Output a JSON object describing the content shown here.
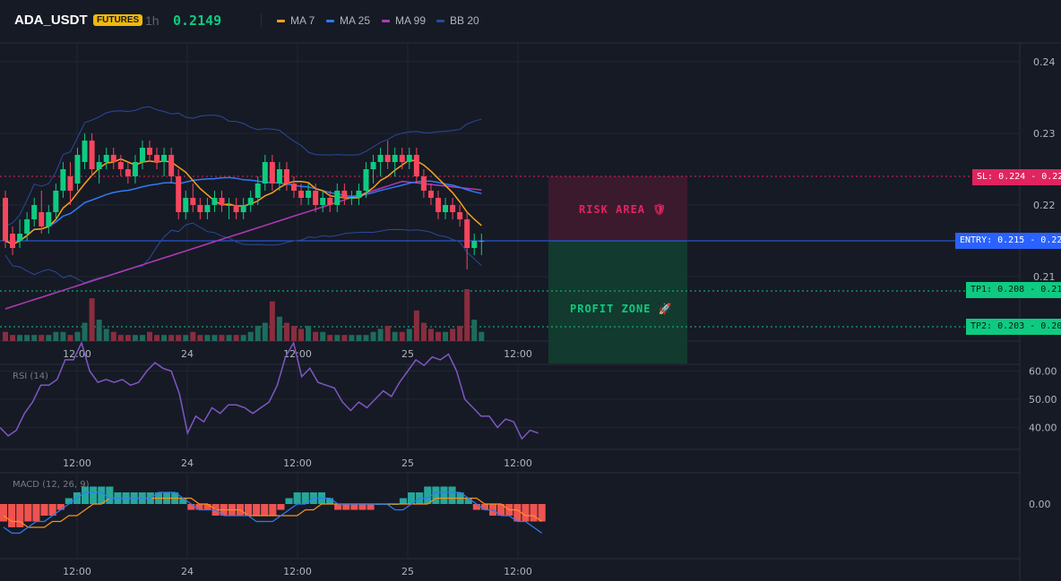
{
  "header": {
    "symbol": "ADA_USDT",
    "badge": "FUTURES",
    "timeframe": "1h",
    "price": "0.2149",
    "legend": [
      {
        "label": "MA 7",
        "color": "#f7a21b"
      },
      {
        "label": "MA 25",
        "color": "#2f7bf5"
      },
      {
        "label": "MA 99",
        "color": "#b03ab8"
      },
      {
        "label": "BB 20",
        "color": "#2a4a9a"
      }
    ]
  },
  "colors": {
    "up": "#0ecb81",
    "down": "#f6465d",
    "bg": "#161a25",
    "grid": "#222632",
    "rsi": "#7e57c2",
    "macd": "#2f7bf5",
    "signal": "#f7931a",
    "hist_up": "#26a69a",
    "hist_down": "#ef5350"
  },
  "x_labels": [
    "12:00",
    "24",
    "12:00",
    "25",
    "12:00"
  ],
  "price_axis": {
    "ticks": [
      "0.24",
      "0.23",
      "0.22",
      "0.21"
    ]
  },
  "rsi_axis": {
    "ticks": [
      "60.00",
      "50.00",
      "40.00"
    ]
  },
  "macd_axis": {
    "ticks": [
      "0.00"
    ]
  },
  "levels": {
    "sl": {
      "value": 0.224,
      "label": "SL: 0.224 - 0.22"
    },
    "entry": {
      "value": 0.215,
      "label": "ENTRY: 0.215 - 0.22"
    },
    "tp1": {
      "value": 0.208,
      "label": "TP1: 0.208 - 0.21"
    },
    "tp2": {
      "value": 0.203,
      "label": "TP2: 0.203 - 0.20"
    }
  },
  "zones": {
    "risk": "RISK AREA 🛡",
    "profit": "PROFIT ZONE 🚀"
  },
  "rsi_title": "RSI (14)",
  "macd_title": "MACD (12, 26, 9)",
  "chart_data": {
    "type": "candlestick",
    "x_tick_labels": [
      "12:00",
      "24",
      "12:00",
      "25",
      "12:00"
    ],
    "ylim": [
      0.201,
      0.242
    ],
    "candles": [
      [
        0.221,
        0.222,
        0.214,
        0.215
      ],
      [
        0.216,
        0.217,
        0.213,
        0.214
      ],
      [
        0.215,
        0.218,
        0.214,
        0.216
      ],
      [
        0.216,
        0.219,
        0.215,
        0.218
      ],
      [
        0.218,
        0.221,
        0.217,
        0.22
      ],
      [
        0.219,
        0.222,
        0.216,
        0.217
      ],
      [
        0.217,
        0.22,
        0.216,
        0.219
      ],
      [
        0.219,
        0.223,
        0.218,
        0.222
      ],
      [
        0.222,
        0.226,
        0.221,
        0.225
      ],
      [
        0.224,
        0.226,
        0.22,
        0.222
      ],
      [
        0.223,
        0.228,
        0.222,
        0.227
      ],
      [
        0.226,
        0.23,
        0.225,
        0.229
      ],
      [
        0.229,
        0.23,
        0.224,
        0.225
      ],
      [
        0.225,
        0.227,
        0.223,
        0.226
      ],
      [
        0.226,
        0.228,
        0.225,
        0.227
      ],
      [
        0.227,
        0.228,
        0.225,
        0.226
      ],
      [
        0.226,
        0.227,
        0.224,
        0.225
      ],
      [
        0.225,
        0.226,
        0.223,
        0.224
      ],
      [
        0.224,
        0.227,
        0.223,
        0.226
      ],
      [
        0.226,
        0.229,
        0.225,
        0.228
      ],
      [
        0.228,
        0.229,
        0.226,
        0.227
      ],
      [
        0.227,
        0.228,
        0.225,
        0.226
      ],
      [
        0.226,
        0.228,
        0.224,
        0.227
      ],
      [
        0.227,
        0.228,
        0.223,
        0.224
      ],
      [
        0.224,
        0.225,
        0.218,
        0.219
      ],
      [
        0.219,
        0.222,
        0.218,
        0.221
      ],
      [
        0.221,
        0.223,
        0.219,
        0.22
      ],
      [
        0.22,
        0.221,
        0.218,
        0.219
      ],
      [
        0.219,
        0.221,
        0.218,
        0.22
      ],
      [
        0.22,
        0.222,
        0.219,
        0.221
      ],
      [
        0.221,
        0.222,
        0.219,
        0.22
      ],
      [
        0.22,
        0.221,
        0.218,
        0.22
      ],
      [
        0.22,
        0.221,
        0.218,
        0.219
      ],
      [
        0.219,
        0.221,
        0.218,
        0.22
      ],
      [
        0.22,
        0.222,
        0.219,
        0.221
      ],
      [
        0.221,
        0.224,
        0.22,
        0.223
      ],
      [
        0.223,
        0.227,
        0.222,
        0.226
      ],
      [
        0.226,
        0.227,
        0.222,
        0.223
      ],
      [
        0.223,
        0.226,
        0.222,
        0.225
      ],
      [
        0.225,
        0.226,
        0.222,
        0.223
      ],
      [
        0.223,
        0.224,
        0.221,
        0.222
      ],
      [
        0.222,
        0.223,
        0.22,
        0.221
      ],
      [
        0.221,
        0.223,
        0.22,
        0.222
      ],
      [
        0.222,
        0.223,
        0.219,
        0.22
      ],
      [
        0.22,
        0.222,
        0.219,
        0.221
      ],
      [
        0.221,
        0.222,
        0.219,
        0.22
      ],
      [
        0.22,
        0.223,
        0.219,
        0.222
      ],
      [
        0.222,
        0.223,
        0.22,
        0.221
      ],
      [
        0.221,
        0.222,
        0.22,
        0.221
      ],
      [
        0.221,
        0.223,
        0.22,
        0.222
      ],
      [
        0.222,
        0.226,
        0.221,
        0.225
      ],
      [
        0.225,
        0.227,
        0.223,
        0.226
      ],
      [
        0.226,
        0.228,
        0.224,
        0.227
      ],
      [
        0.227,
        0.229,
        0.225,
        0.226
      ],
      [
        0.226,
        0.228,
        0.224,
        0.227
      ],
      [
        0.227,
        0.228,
        0.225,
        0.226
      ],
      [
        0.226,
        0.228,
        0.225,
        0.227
      ],
      [
        0.227,
        0.228,
        0.223,
        0.224
      ],
      [
        0.224,
        0.225,
        0.221,
        0.222
      ],
      [
        0.222,
        0.223,
        0.22,
        0.221
      ],
      [
        0.221,
        0.222,
        0.218,
        0.219
      ],
      [
        0.219,
        0.221,
        0.218,
        0.22
      ],
      [
        0.22,
        0.221,
        0.218,
        0.219
      ],
      [
        0.219,
        0.22,
        0.217,
        0.218
      ],
      [
        0.218,
        0.219,
        0.211,
        0.214
      ],
      [
        0.214,
        0.216,
        0.213,
        0.215
      ],
      [
        0.215,
        0.216,
        0.213,
        0.215
      ]
    ],
    "volume": [
      3,
      2,
      2,
      2,
      2,
      2,
      2,
      3,
      3,
      2,
      3,
      6,
      14,
      7,
      4,
      3,
      2,
      2,
      2,
      2,
      3,
      2,
      2,
      2,
      2,
      2,
      3,
      2,
      2,
      2,
      2,
      2,
      2,
      2,
      3,
      5,
      6,
      13,
      8,
      6,
      5,
      4,
      5,
      3,
      3,
      2,
      2,
      2,
      2,
      2,
      2,
      3,
      4,
      5,
      3,
      3,
      4,
      10,
      6,
      4,
      3,
      3,
      4,
      5,
      17,
      7,
      3
    ],
    "rsi": [
      40,
      37,
      39,
      45,
      49,
      55,
      55,
      57,
      64,
      64,
      70,
      60,
      56,
      57,
      56,
      57,
      55,
      56,
      60,
      63,
      61,
      60,
      52,
      38,
      44,
      42,
      47,
      45,
      48,
      48,
      47,
      45,
      47,
      49,
      55,
      65,
      70,
      58,
      61,
      56,
      55,
      54,
      49,
      46,
      49,
      47,
      50,
      53,
      51,
      56,
      60,
      64,
      62,
      65,
      64,
      66,
      60,
      50,
      47,
      44,
      44,
      40,
      43,
      42,
      36,
      39,
      38
    ],
    "macd": [
      -0.004,
      -0.005,
      -0.005,
      -0.004,
      -0.003,
      -0.003,
      -0.002,
      -0.001,
      0.0,
      0.001,
      0.002,
      0.002,
      0.002,
      0.001,
      0.001,
      0.001,
      0.001,
      0.001,
      0.001,
      0.002,
      0.002,
      0.002,
      0.001,
      0.0,
      -0.001,
      -0.001,
      -0.001,
      -0.002,
      -0.002,
      -0.002,
      -0.002,
      -0.003,
      -0.003,
      -0.003,
      -0.002,
      -0.001,
      0.0,
      0.0,
      0.001,
      0.001,
      0.001,
      0.0,
      0.0,
      0.0,
      0.0,
      0.0,
      0.0,
      -0.0,
      -0.001,
      -0.001,
      0.0,
      0.001,
      0.001,
      0.002,
      0.002,
      0.002,
      0.002,
      0.001,
      0.0,
      -0.001,
      -0.001,
      -0.002,
      -0.002,
      -0.003,
      -0.003,
      -0.004,
      -0.005
    ],
    "signal": [
      -0.002,
      -0.003,
      -0.003,
      -0.004,
      -0.004,
      -0.004,
      -0.003,
      -0.003,
      -0.002,
      -0.002,
      -0.001,
      -0.0,
      0.0,
      0.001,
      0.001,
      0.001,
      0.001,
      0.001,
      0.001,
      0.001,
      0.001,
      0.001,
      0.001,
      0.001,
      0.0,
      -0.0,
      -0.001,
      -0.001,
      -0.001,
      -0.001,
      -0.002,
      -0.002,
      -0.002,
      -0.002,
      -0.002,
      -0.002,
      -0.002,
      -0.001,
      -0.001,
      -0.0,
      0.0,
      0.0,
      0.0,
      0.0,
      0.0,
      0.0,
      0.0,
      0.0,
      -0.0,
      -0.0,
      -0.0,
      0.0,
      0.0,
      0.001,
      0.001,
      0.001,
      0.001,
      0.001,
      0.001,
      0.0,
      -0.0,
      -0.0,
      -0.001,
      -0.001,
      -0.002,
      -0.002,
      -0.003
    ],
    "hist": [
      -0.003,
      -0.004,
      -0.004,
      -0.003,
      -0.003,
      -0.002,
      -0.002,
      -0.001,
      0.001,
      0.002,
      0.003,
      0.003,
      0.003,
      0.003,
      0.002,
      0.002,
      0.002,
      0.002,
      0.002,
      0.002,
      0.002,
      0.002,
      0.001,
      -0.001,
      -0.001,
      -0.001,
      -0.002,
      -0.002,
      -0.002,
      -0.002,
      -0.002,
      -0.002,
      -0.002,
      -0.002,
      -0.001,
      0.001,
      0.002,
      0.002,
      0.002,
      0.002,
      0.001,
      -0.001,
      -0.001,
      -0.001,
      -0.001,
      -0.001,
      0.0,
      -0.0,
      -0.0,
      0.001,
      0.002,
      0.002,
      0.003,
      0.003,
      0.003,
      0.003,
      0.002,
      0.001,
      -0.001,
      -0.001,
      -0.002,
      -0.002,
      -0.002,
      -0.003,
      -0.003,
      -0.003,
      -0.003
    ]
  }
}
